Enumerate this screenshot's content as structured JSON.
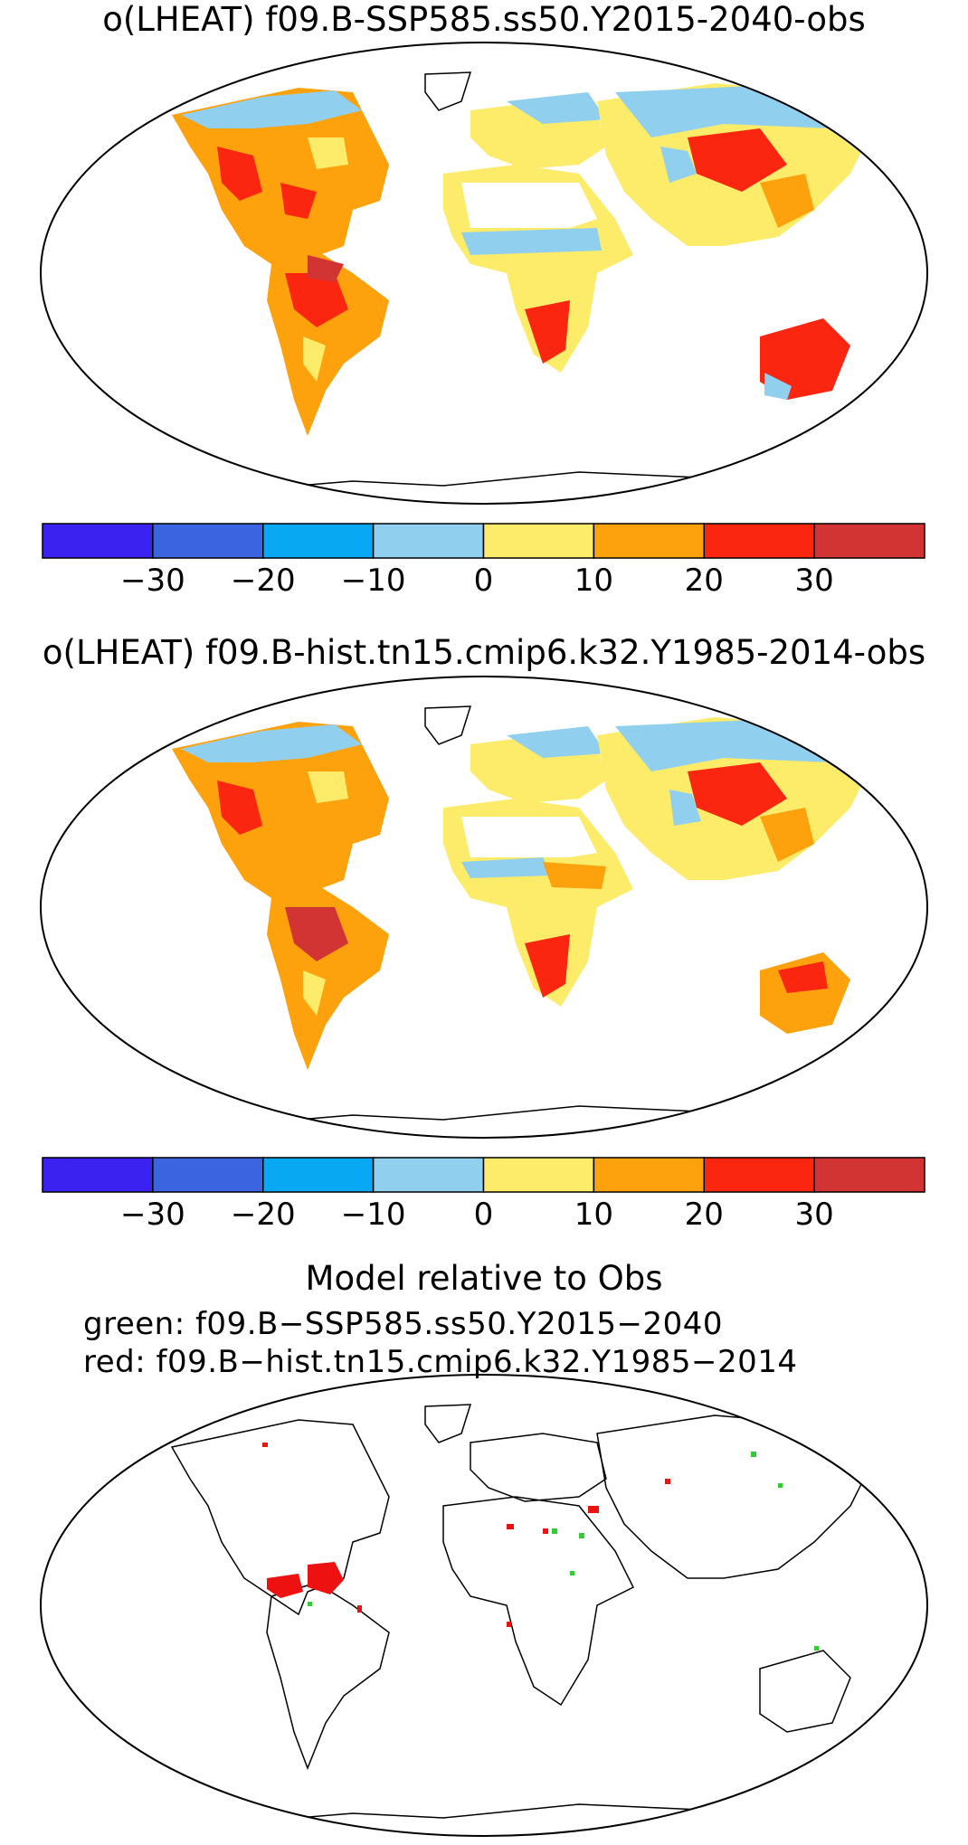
{
  "panels": [
    {
      "title": "o(LHEAT) f09.B-SSP585.ss50.Y2015-2040-obs"
    },
    {
      "title": "o(LHEAT) f09.B-hist.tn15.cmip6.k32.Y1985-2014-obs"
    }
  ],
  "colorbar": {
    "colors": [
      "#3b22f0",
      "#3a64e0",
      "#08a9f2",
      "#90cfee",
      "#fdeb6a",
      "#fda10d",
      "#fb2610",
      "#d23333"
    ],
    "ticks": [
      "−30",
      "−20",
      "−10",
      "0",
      "10",
      "20",
      "30"
    ]
  },
  "comparison": {
    "title": "Model relative to Obs",
    "green_label": "green: f09.B−SSP585.ss50.Y2015−2040",
    "red_label": "red: f09.B−hist.tn15.cmip6.k32.Y1985−2014",
    "green_color": "#33cc33",
    "red_color": "#ee1111"
  }
}
